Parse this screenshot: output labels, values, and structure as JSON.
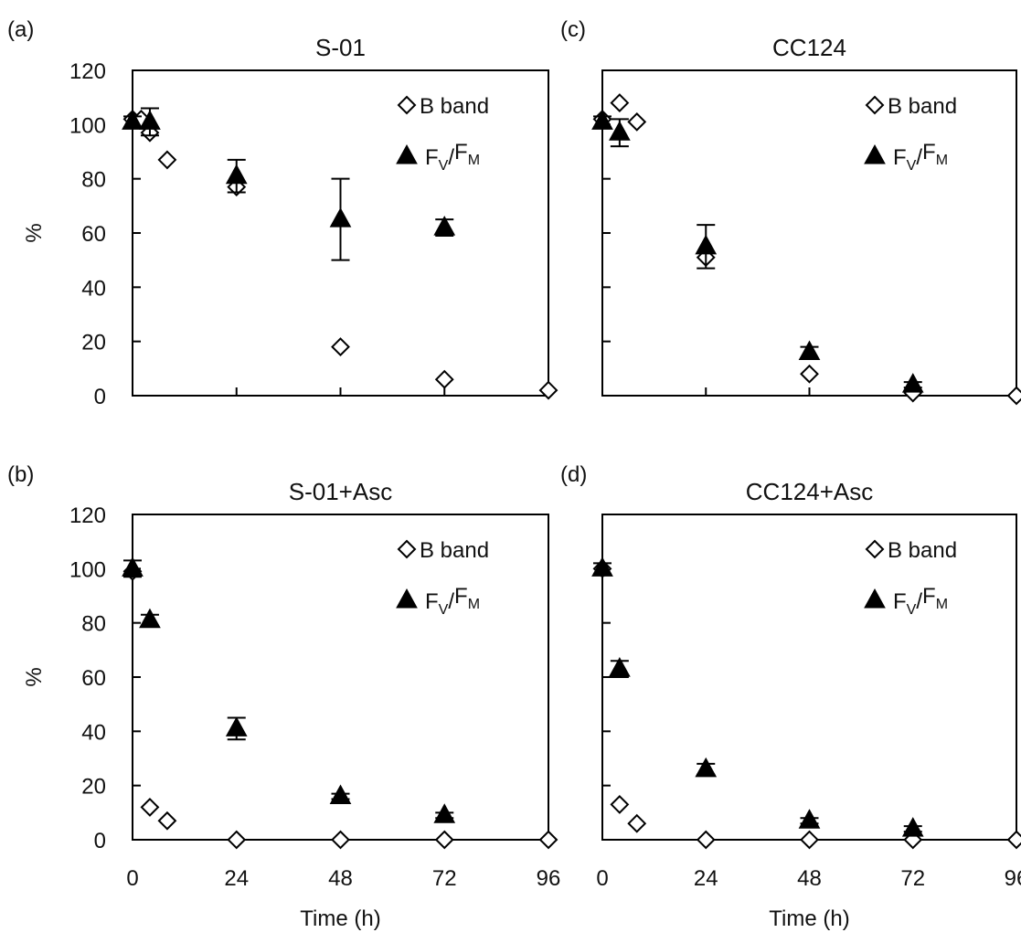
{
  "figure": {
    "ylabel": "%",
    "xlabel": "Time (h)",
    "x_ticks": [
      0,
      24,
      48,
      72,
      96
    ],
    "y_ticks": [
      0,
      20,
      40,
      60,
      80,
      100,
      120
    ]
  },
  "chart_data": [
    {
      "type": "scatter",
      "panel_label": "(a)",
      "title": "S-01",
      "xlabel": "",
      "ylabel": "%",
      "xlim": [
        0,
        96
      ],
      "ylim": [
        0,
        120
      ],
      "legend_position": "top-right",
      "series": [
        {
          "name": "B band",
          "marker": "open-diamond",
          "x": [
            0,
            2,
            4,
            8,
            24,
            48,
            72,
            96
          ],
          "y": [
            102,
            102,
            97,
            87,
            77,
            18,
            6,
            2
          ]
        },
        {
          "name": "FV/FM",
          "marker": "filled-triangle",
          "x": [
            0,
            4,
            24,
            48,
            72
          ],
          "y": [
            101,
            101,
            81,
            65,
            62
          ],
          "error": [
            2,
            5,
            6,
            15,
            3
          ]
        }
      ]
    },
    {
      "type": "scatter",
      "panel_label": "(c)",
      "title": "CC124",
      "xlabel": "",
      "ylabel": "",
      "xlim": [
        0,
        96
      ],
      "ylim": [
        0,
        120
      ],
      "legend_position": "top-right",
      "series": [
        {
          "name": "B band",
          "marker": "open-diamond",
          "x": [
            0,
            4,
            8,
            24,
            48,
            72,
            96
          ],
          "y": [
            102,
            108,
            101,
            51,
            8,
            1,
            0
          ]
        },
        {
          "name": "FV/FM",
          "marker": "filled-triangle",
          "x": [
            0,
            4,
            24,
            48,
            72
          ],
          "y": [
            101,
            97,
            55,
            16,
            4
          ],
          "error": [
            2,
            5,
            8,
            2,
            1
          ]
        }
      ]
    },
    {
      "type": "scatter",
      "panel_label": "(b)",
      "title": "S-01+Asc",
      "xlabel": "Time (h)",
      "ylabel": "%",
      "xlim": [
        0,
        96
      ],
      "ylim": [
        0,
        120
      ],
      "legend_position": "top-right",
      "series": [
        {
          "name": "B band",
          "marker": "open-diamond",
          "x": [
            0,
            4,
            8,
            24,
            48,
            72,
            96
          ],
          "y": [
            99,
            12,
            7,
            0,
            0,
            0,
            0
          ]
        },
        {
          "name": "FV/FM",
          "marker": "filled-triangle",
          "x": [
            0,
            4,
            24,
            48,
            72
          ],
          "y": [
            100,
            81,
            41,
            16,
            9
          ],
          "error": [
            3,
            2,
            4,
            1,
            1
          ]
        }
      ]
    },
    {
      "type": "scatter",
      "panel_label": "(d)",
      "title": "CC124+Asc",
      "xlabel": "Time (h)",
      "ylabel": "",
      "xlim": [
        0,
        96
      ],
      "ylim": [
        0,
        120
      ],
      "legend_position": "top-right",
      "series": [
        {
          "name": "B band",
          "marker": "open-diamond",
          "x": [
            0,
            4,
            8,
            24,
            48,
            72,
            96
          ],
          "y": [
            100,
            13,
            6,
            0,
            0,
            0,
            0
          ]
        },
        {
          "name": "FV/FM",
          "marker": "filled-triangle",
          "x": [
            0,
            4,
            24,
            48,
            72
          ],
          "y": [
            100,
            63,
            26,
            7,
            4
          ],
          "error": [
            2,
            3,
            2,
            1,
            1
          ]
        }
      ]
    }
  ],
  "legend": {
    "bband": "B band",
    "fvfm": {
      "f1": "F",
      "sub1": "V",
      "slash": "/",
      "f2": "F",
      "sub2": "M"
    }
  }
}
